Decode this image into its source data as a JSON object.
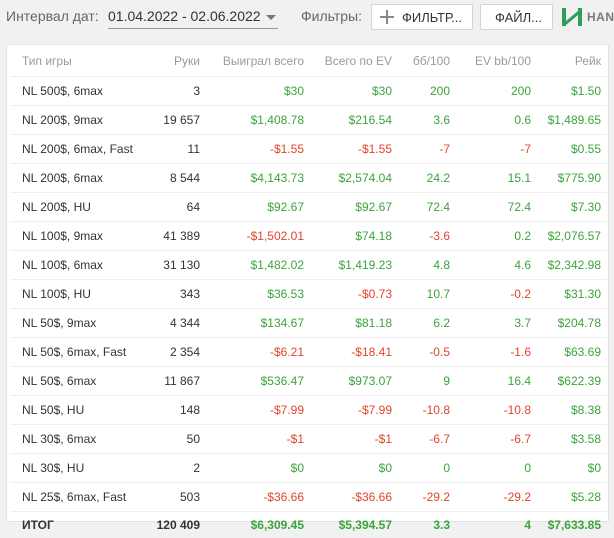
{
  "header": {
    "interval_label": "Интервал дат:",
    "date_range": "01.04.2022 - 02.06.2022",
    "filters_label": "Фильтры:",
    "filter_button": "ФИЛЬТР...",
    "file_button": "ФАЙЛ...",
    "logo_text": "HAN"
  },
  "colors": {
    "positive": "#3ca33c",
    "negative": "#e0452a",
    "logo": "#2e9e5b"
  },
  "table": {
    "columns": [
      "Тип игры",
      "Руки",
      "Выиграл всего",
      "Всего по EV",
      "бб/100",
      "EV bb/100",
      "Рейк"
    ],
    "rows": [
      [
        "NL 500$, 6max",
        "3",
        "$30",
        "$30",
        "200",
        "200",
        "$1.50"
      ],
      [
        "NL 200$, 9max",
        "19 657",
        "$1,408.78",
        "$216.54",
        "3.6",
        "0.6",
        "$1,489.65"
      ],
      [
        "NL 200$, 6max, Fast",
        "11",
        "-$1.55",
        "-$1.55",
        "-7",
        "-7",
        "$0.55"
      ],
      [
        "NL 200$, 6max",
        "8 544",
        "$4,143.73",
        "$2,574.04",
        "24.2",
        "15.1",
        "$775.90"
      ],
      [
        "NL 200$, HU",
        "64",
        "$92.67",
        "$92.67",
        "72.4",
        "72.4",
        "$7.30"
      ],
      [
        "NL 100$, 9max",
        "41 389",
        "-$1,502.01",
        "$74.18",
        "-3.6",
        "0.2",
        "$2,076.57"
      ],
      [
        "NL 100$, 6max",
        "31 130",
        "$1,482.02",
        "$1,419.23",
        "4.8",
        "4.6",
        "$2,342.98"
      ],
      [
        "NL 100$, HU",
        "343",
        "$36.53",
        "-$0.73",
        "10.7",
        "-0.2",
        "$31.30"
      ],
      [
        "NL 50$, 9max",
        "4 344",
        "$134.67",
        "$81.18",
        "6.2",
        "3.7",
        "$204.78"
      ],
      [
        "NL 50$, 6max, Fast",
        "2 354",
        "-$6.21",
        "-$18.41",
        "-0.5",
        "-1.6",
        "$63.69"
      ],
      [
        "NL 50$, 6max",
        "11 867",
        "$536.47",
        "$973.07",
        "9",
        "16.4",
        "$622.39"
      ],
      [
        "NL 50$, HU",
        "148",
        "-$7.99",
        "-$7.99",
        "-10.8",
        "-10.8",
        "$8.38"
      ],
      [
        "NL 30$, 6max",
        "50",
        "-$1",
        "-$1",
        "-6.7",
        "-6.7",
        "$3.58"
      ],
      [
        "NL 30$, HU",
        "2",
        "$0",
        "$0",
        "0",
        "0",
        "$0"
      ],
      [
        "NL 25$, 6max, Fast",
        "503",
        "-$36.66",
        "-$36.66",
        "-29.2",
        "-29.2",
        "$5.28"
      ]
    ],
    "total": [
      "ИТОГ",
      "120 409",
      "$6,309.45",
      "$5,394.57",
      "3.3",
      "4",
      "$7,633.85"
    ]
  }
}
